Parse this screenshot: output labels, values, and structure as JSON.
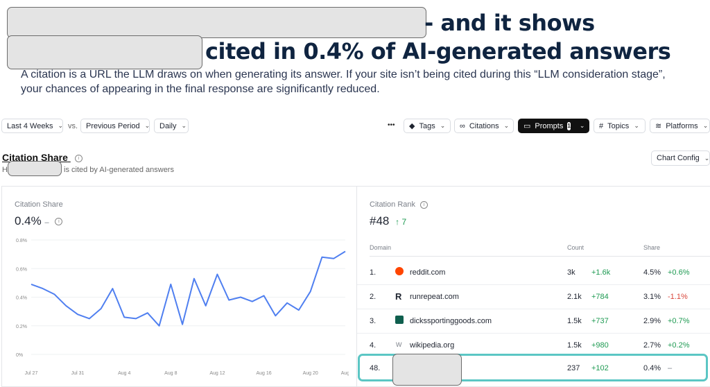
{
  "headline": {
    "line1_suffix": "- and it shows",
    "line2_suffix": "cited in 0.4% of AI-generated answers"
  },
  "subtext": "A citation is a URL the LLM draws on when generating its answer. If your site isn’t being cited during this “LLM consideration stage”, your chances of appearing in the final response are significantly reduced.",
  "toolbar": {
    "range": "Last 4 Weeks",
    "vs": "vs.",
    "compare": "Previous Period",
    "granularity": "Daily",
    "more": "•••",
    "tags": "Tags",
    "citations": "Citations",
    "prompts": "Prompts",
    "prompts_count": "1",
    "topics": "Topics",
    "platforms": "Platforms",
    "chart_config": "Chart Config"
  },
  "section": {
    "title": "Citation Share",
    "desc_prefix": "H",
    "desc_suffix": "is cited by AI-generated answers"
  },
  "share_panel": {
    "label": "Citation Share",
    "value": "0.4%",
    "delta": "–"
  },
  "rank_panel": {
    "label": "Citation Rank",
    "value": "#48",
    "delta": "↑ 7",
    "columns": [
      "Domain",
      "Count",
      "Share"
    ],
    "rows": [
      {
        "rank": "1.",
        "domain": "reddit.com",
        "count": "3k",
        "count_delta": "+1.6k",
        "share": "4.5%",
        "share_delta": "+0.6%",
        "share_delta_color": "green"
      },
      {
        "rank": "2.",
        "domain": "runrepeat.com",
        "count": "2.1k",
        "count_delta": "+784",
        "share": "3.1%",
        "share_delta": "-1.1%",
        "share_delta_color": "red"
      },
      {
        "rank": "3.",
        "domain": "dickssportinggoods.com",
        "count": "1.5k",
        "count_delta": "+737",
        "share": "2.9%",
        "share_delta": "+0.7%",
        "share_delta_color": "green"
      },
      {
        "rank": "4.",
        "domain": "wikipedia.org",
        "count": "1.5k",
        "count_delta": "+980",
        "share": "2.7%",
        "share_delta": "+0.2%",
        "share_delta_color": "green"
      },
      {
        "rank": "48.",
        "domain": "",
        "count": "237",
        "count_delta": "+102",
        "share": "0.4%",
        "share_delta": "–",
        "share_delta_color": "muted"
      }
    ]
  },
  "chart_data": {
    "type": "line",
    "x": [
      "Jul 27",
      "Jul 28",
      "Jul 29",
      "Jul 30",
      "Jul 31",
      "Aug 1",
      "Aug 2",
      "Aug 3",
      "Aug 4",
      "Aug 5",
      "Aug 6",
      "Aug 7",
      "Aug 8",
      "Aug 9",
      "Aug 10",
      "Aug 11",
      "Aug 12",
      "Aug 13",
      "Aug 14",
      "Aug 15",
      "Aug 16",
      "Aug 17",
      "Aug 18",
      "Aug 19",
      "Aug 20",
      "Aug 21",
      "Aug 22",
      "Aug 23"
    ],
    "series": [
      {
        "values": [
          0.49,
          0.46,
          0.42,
          0.34,
          0.28,
          0.25,
          0.32,
          0.46,
          0.26,
          0.25,
          0.29,
          0.2,
          0.49,
          0.21,
          0.53,
          0.34,
          0.56,
          0.38,
          0.4,
          0.37,
          0.41,
          0.27,
          0.36,
          0.31,
          0.44,
          0.68,
          0.67,
          0.72
        ]
      }
    ],
    "ylim": [
      0,
      0.8
    ],
    "y_ticks": [
      "0%",
      "0.2%",
      "0.4%",
      "0.6%",
      "0.8%"
    ],
    "x_tick_labels": [
      "Jul 27",
      "Jul 31",
      "Aug 4",
      "Aug 8",
      "Aug 12",
      "Aug 16",
      "Aug 20",
      "Aug"
    ],
    "x_tick_index": [
      0,
      4,
      8,
      12,
      16,
      20,
      24,
      27
    ],
    "grid": true,
    "color": "#4f7ff0"
  }
}
